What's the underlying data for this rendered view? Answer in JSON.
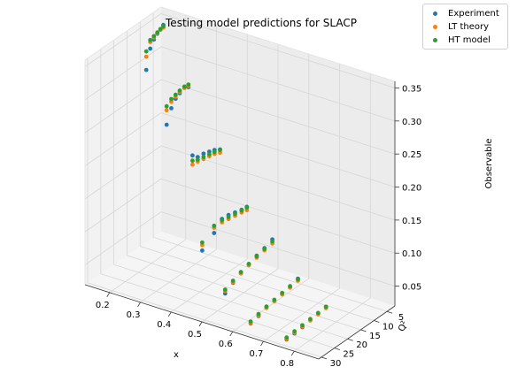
{
  "chart_data": {
    "type": "scatter",
    "title": "Testing model predictions for SLACP",
    "xlabel": "x",
    "ylabel": "Q²",
    "zlabel": "Observable",
    "xlim": [
      0.12,
      0.88
    ],
    "ylim": [
      2,
      31
    ],
    "zlim": [
      0.02,
      0.36
    ],
    "x_ticks": [
      0.2,
      0.3,
      0.4,
      0.5,
      0.6,
      0.7,
      0.8
    ],
    "y_ticks": [
      5,
      10,
      15,
      20,
      25,
      30
    ],
    "z_ticks": [
      0.05,
      0.1,
      0.15,
      0.2,
      0.25,
      0.3,
      0.35
    ],
    "x_tick_labels": [
      "0.2",
      "0.3",
      "0.4",
      "0.5",
      "0.6",
      "0.7",
      "0.8"
    ],
    "y_tick_labels": [
      "5",
      "10",
      "15",
      "20",
      "25",
      "30"
    ],
    "z_tick_labels": [
      "0.05",
      "0.10",
      "0.15",
      "0.20",
      "0.25",
      "0.30",
      "0.35"
    ],
    "grid": true,
    "legend_position": "top-right",
    "series": [
      {
        "name": "Experiment",
        "color": "#1f77b4",
        "points": [
          [
            0.14,
            3.5,
            0.34
          ],
          [
            0.14,
            4.6,
            0.336
          ],
          [
            0.14,
            5.8,
            0.333
          ],
          [
            0.14,
            7.1,
            0.328
          ],
          [
            0.14,
            8.5,
            0.318
          ],
          [
            0.14,
            10.0,
            0.29
          ],
          [
            0.23,
            4.5,
            0.262
          ],
          [
            0.23,
            6.0,
            0.265
          ],
          [
            0.23,
            7.8,
            0.262
          ],
          [
            0.23,
            9.4,
            0.258
          ],
          [
            0.23,
            11.0,
            0.248
          ],
          [
            0.23,
            12.8,
            0.228
          ],
          [
            0.35,
            6.5,
            0.191
          ],
          [
            0.35,
            8.6,
            0.196
          ],
          [
            0.35,
            10.6,
            0.199
          ],
          [
            0.35,
            12.8,
            0.202
          ],
          [
            0.35,
            15.0,
            0.203
          ],
          [
            0.35,
            17.0,
            0.211
          ],
          [
            0.45,
            8.0,
            0.123
          ],
          [
            0.45,
            10.0,
            0.124
          ],
          [
            0.45,
            12.5,
            0.127
          ],
          [
            0.45,
            15.0,
            0.13
          ],
          [
            0.45,
            17.5,
            0.131
          ],
          [
            0.45,
            20.5,
            0.118
          ],
          [
            0.45,
            25.0,
            0.104
          ],
          [
            0.55,
            10.0,
            0.094
          ],
          [
            0.55,
            13.0,
            0.089
          ],
          [
            0.55,
            16.0,
            0.086
          ],
          [
            0.55,
            19.0,
            0.081
          ],
          [
            0.55,
            22.0,
            0.076
          ],
          [
            0.55,
            25.0,
            0.07
          ],
          [
            0.55,
            28.0,
            0.062
          ],
          [
            0.65,
            12.0,
            0.055
          ],
          [
            0.65,
            15.0,
            0.05
          ],
          [
            0.65,
            18.0,
            0.048
          ],
          [
            0.65,
            21.0,
            0.046
          ],
          [
            0.65,
            24.0,
            0.044
          ],
          [
            0.65,
            27.0,
            0.04
          ],
          [
            0.65,
            30.0,
            0.037
          ],
          [
            0.75,
            13.0,
            0.03
          ],
          [
            0.75,
            16.0,
            0.028
          ],
          [
            0.75,
            19.0,
            0.026
          ],
          [
            0.75,
            22.0,
            0.024
          ],
          [
            0.75,
            25.0,
            0.023
          ],
          [
            0.75,
            28.0,
            0.022
          ]
        ]
      },
      {
        "name": "LT theory",
        "color": "#ff7f0e",
        "points": [
          [
            0.14,
            3.5,
            0.336
          ],
          [
            0.14,
            4.6,
            0.336
          ],
          [
            0.14,
            5.8,
            0.334
          ],
          [
            0.14,
            7.1,
            0.331
          ],
          [
            0.14,
            8.5,
            0.328
          ],
          [
            0.14,
            10.0,
            0.31
          ],
          [
            0.23,
            4.5,
            0.264
          ],
          [
            0.23,
            6.0,
            0.265
          ],
          [
            0.23,
            7.8,
            0.264
          ],
          [
            0.23,
            9.4,
            0.261
          ],
          [
            0.23,
            11.0,
            0.258
          ],
          [
            0.23,
            12.8,
            0.25
          ],
          [
            0.35,
            6.5,
            0.186
          ],
          [
            0.35,
            8.6,
            0.19
          ],
          [
            0.35,
            10.6,
            0.192
          ],
          [
            0.35,
            12.8,
            0.194
          ],
          [
            0.35,
            15.0,
            0.196
          ],
          [
            0.35,
            17.0,
            0.197
          ],
          [
            0.45,
            8.0,
            0.118
          ],
          [
            0.45,
            10.0,
            0.12
          ],
          [
            0.45,
            12.5,
            0.122
          ],
          [
            0.45,
            15.0,
            0.124
          ],
          [
            0.45,
            17.5,
            0.126
          ],
          [
            0.45,
            20.5,
            0.126
          ],
          [
            0.45,
            25.0,
            0.112
          ],
          [
            0.55,
            10.0,
            0.088
          ],
          [
            0.55,
            13.0,
            0.086
          ],
          [
            0.55,
            16.0,
            0.083
          ],
          [
            0.55,
            19.0,
            0.08
          ],
          [
            0.55,
            22.0,
            0.076
          ],
          [
            0.55,
            25.0,
            0.071
          ],
          [
            0.55,
            28.0,
            0.066
          ],
          [
            0.65,
            12.0,
            0.052
          ],
          [
            0.65,
            15.0,
            0.05
          ],
          [
            0.65,
            18.0,
            0.048
          ],
          [
            0.65,
            21.0,
            0.046
          ],
          [
            0.65,
            24.0,
            0.044
          ],
          [
            0.65,
            27.0,
            0.041
          ],
          [
            0.65,
            30.0,
            0.038
          ],
          [
            0.75,
            13.0,
            0.028
          ],
          [
            0.75,
            16.0,
            0.027
          ],
          [
            0.75,
            19.0,
            0.026
          ],
          [
            0.75,
            22.0,
            0.025
          ],
          [
            0.75,
            25.0,
            0.024
          ],
          [
            0.75,
            28.0,
            0.023
          ]
        ]
      },
      {
        "name": "HT model",
        "color": "#2ca02c",
        "points": [
          [
            0.14,
            3.5,
            0.338
          ],
          [
            0.14,
            4.6,
            0.337
          ],
          [
            0.14,
            5.8,
            0.335
          ],
          [
            0.14,
            7.1,
            0.333
          ],
          [
            0.14,
            8.5,
            0.331
          ],
          [
            0.14,
            10.0,
            0.318
          ],
          [
            0.23,
            4.5,
            0.266
          ],
          [
            0.23,
            6.0,
            0.267
          ],
          [
            0.23,
            7.8,
            0.266
          ],
          [
            0.23,
            9.4,
            0.264
          ],
          [
            0.23,
            11.0,
            0.262
          ],
          [
            0.23,
            12.8,
            0.256
          ],
          [
            0.35,
            6.5,
            0.19
          ],
          [
            0.35,
            8.6,
            0.193
          ],
          [
            0.35,
            10.6,
            0.195
          ],
          [
            0.35,
            12.8,
            0.197
          ],
          [
            0.35,
            15.0,
            0.199
          ],
          [
            0.35,
            17.0,
            0.203
          ],
          [
            0.45,
            8.0,
            0.122
          ],
          [
            0.45,
            10.0,
            0.123
          ],
          [
            0.45,
            12.5,
            0.125
          ],
          [
            0.45,
            15.0,
            0.127
          ],
          [
            0.45,
            17.5,
            0.129
          ],
          [
            0.45,
            20.5,
            0.129
          ],
          [
            0.45,
            25.0,
            0.116
          ],
          [
            0.55,
            10.0,
            0.091
          ],
          [
            0.55,
            13.0,
            0.088
          ],
          [
            0.55,
            16.0,
            0.085
          ],
          [
            0.55,
            19.0,
            0.082
          ],
          [
            0.55,
            22.0,
            0.078
          ],
          [
            0.55,
            25.0,
            0.073
          ],
          [
            0.55,
            28.0,
            0.068
          ],
          [
            0.65,
            12.0,
            0.054
          ],
          [
            0.65,
            15.0,
            0.052
          ],
          [
            0.65,
            18.0,
            0.05
          ],
          [
            0.65,
            21.0,
            0.048
          ],
          [
            0.65,
            24.0,
            0.046
          ],
          [
            0.65,
            27.0,
            0.043
          ],
          [
            0.65,
            30.0,
            0.04
          ],
          [
            0.75,
            13.0,
            0.03
          ],
          [
            0.75,
            16.0,
            0.029
          ],
          [
            0.75,
            19.0,
            0.028
          ],
          [
            0.75,
            22.0,
            0.027
          ],
          [
            0.75,
            25.0,
            0.026
          ],
          [
            0.75,
            28.0,
            0.025
          ]
        ]
      }
    ]
  }
}
